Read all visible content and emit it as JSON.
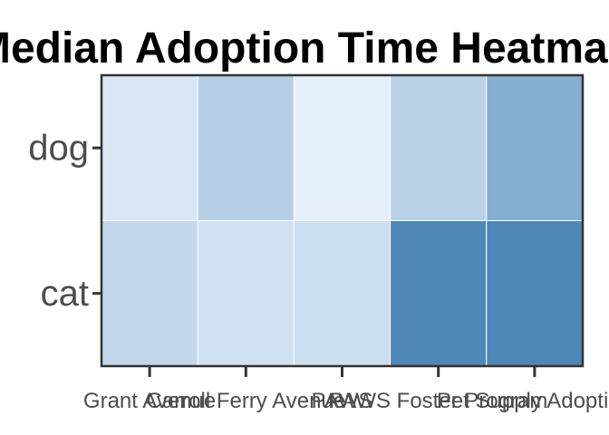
{
  "chart_data": {
    "type": "heatmap",
    "title": "Median Adoption Time Heatmap",
    "xlabel": "",
    "ylabel": "",
    "x_categories": [
      "Grant Avenue",
      "Carroll Ferry Avenue",
      "PAWS",
      "PAWS Foster Program",
      "Pet Supply Adoption"
    ],
    "y_categories": [
      "dog",
      "cat"
    ],
    "values": [
      [
        0.12,
        0.34,
        0.05,
        0.31,
        0.62
      ],
      [
        0.27,
        0.18,
        0.2,
        0.95,
        0.96
      ]
    ],
    "color_low": "#eef6ff",
    "color_high": "#4682b4",
    "legend": "none",
    "grid": false
  }
}
